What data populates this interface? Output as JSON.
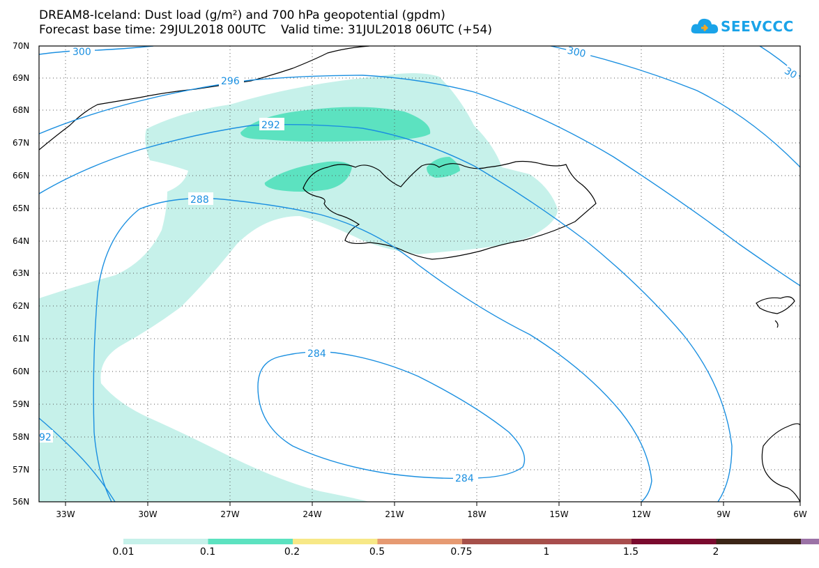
{
  "header": {
    "title_line1": "DREAM8-Iceland: Dust load (g/m²) and 700 hPa geopotential (gpdm)",
    "title_line2": "Forecast base time: 29JUL2018 00UTC    Valid time: 31JUL2018 06UTC (+54)"
  },
  "logo": {
    "text": "SEEVCCC",
    "icon": "cloud-logo-icon",
    "color": "#1aa3e8"
  },
  "map": {
    "lat_labels": [
      "70N",
      "69N",
      "68N",
      "67N",
      "66N",
      "65N",
      "64N",
      "63N",
      "62N",
      "61N",
      "60N",
      "59N",
      "58N",
      "57N",
      "56N"
    ],
    "lon_labels": [
      "33W",
      "30W",
      "27W",
      "24W",
      "21W",
      "18W",
      "15W",
      "12W",
      "9W",
      "6W"
    ],
    "contour_labels": [
      "300",
      "300",
      "30",
      "296",
      "292",
      "288",
      "284",
      "284",
      "92"
    ],
    "contour_color": "#1a8fe0"
  },
  "colorbar": {
    "colors": [
      "#c6f1ea",
      "#5ce2c0",
      "#f7e887",
      "#e69a72",
      "#a6504a",
      "#a84d4d",
      "#7a0a2e",
      "#3b2516",
      "#9b72a6"
    ],
    "labels": [
      "0.01",
      "0.1",
      "0.2",
      "0.5",
      "0.75",
      "1",
      "1.5",
      "2"
    ]
  }
}
